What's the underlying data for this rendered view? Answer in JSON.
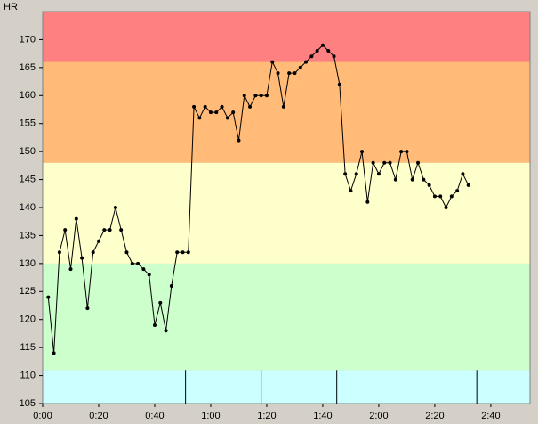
{
  "chart_data": {
    "type": "line",
    "ylabel": "HR",
    "x": [
      2,
      4,
      6,
      8,
      10,
      12,
      14,
      16,
      18,
      20,
      22,
      24,
      26,
      28,
      30,
      32,
      34,
      36,
      38,
      40,
      42,
      44,
      46,
      48,
      50,
      52,
      54,
      56,
      58,
      60,
      62,
      64,
      66,
      68,
      70,
      72,
      74,
      76,
      78,
      80,
      82,
      84,
      86,
      88,
      90,
      92,
      94,
      96,
      98,
      100,
      102,
      104,
      106,
      108,
      110,
      112,
      114,
      116,
      118,
      120,
      122,
      124,
      126,
      128,
      130,
      132,
      134,
      136,
      138,
      140,
      142,
      144,
      146,
      148,
      150,
      152
    ],
    "series": [
      {
        "color": "#000000",
        "values": [
          124,
          114,
          132,
          136,
          129,
          138,
          131,
          122,
          132,
          134,
          136,
          136,
          140,
          136,
          132,
          130,
          130,
          129,
          128,
          119,
          123,
          118,
          126,
          132,
          132,
          132,
          158,
          156,
          158,
          157,
          157,
          158,
          156,
          157,
          152,
          160,
          158,
          160,
          160,
          160,
          166,
          164,
          158,
          164,
          164,
          165,
          166,
          167,
          168,
          169,
          168,
          167,
          162,
          146,
          143,
          146,
          150,
          141,
          148,
          146,
          148,
          148,
          145,
          150,
          150,
          145,
          148,
          145,
          144,
          142,
          142,
          140,
          142,
          143,
          146,
          144
        ]
      }
    ],
    "zones": [
      {
        "from": 105,
        "to": 111,
        "color": "#ccffff"
      },
      {
        "from": 111,
        "to": 130,
        "color": "#ccffcc"
      },
      {
        "from": 130,
        "to": 148,
        "color": "#ffffcc"
      },
      {
        "from": 148,
        "to": 166,
        "color": "#ffbb77"
      },
      {
        "from": 166,
        "to": 175,
        "color": "#ff8080"
      }
    ],
    "markers": [
      51,
      78,
      105,
      155
    ],
    "xlim": [
      0,
      174
    ],
    "ylim": [
      105,
      175
    ],
    "xticks": [
      {
        "value": 0,
        "label": "0:00"
      },
      {
        "value": 20,
        "label": "0:20"
      },
      {
        "value": 40,
        "label": "0:40"
      },
      {
        "value": 60,
        "label": "1:00"
      },
      {
        "value": 80,
        "label": "1:20"
      },
      {
        "value": 100,
        "label": "1:40"
      },
      {
        "value": 120,
        "label": "2:00"
      },
      {
        "value": 140,
        "label": "2:20"
      },
      {
        "value": 160,
        "label": "2:40"
      }
    ],
    "yticks": [
      105,
      110,
      115,
      120,
      125,
      130,
      135,
      140,
      145,
      150,
      155,
      160,
      165,
      170
    ]
  }
}
